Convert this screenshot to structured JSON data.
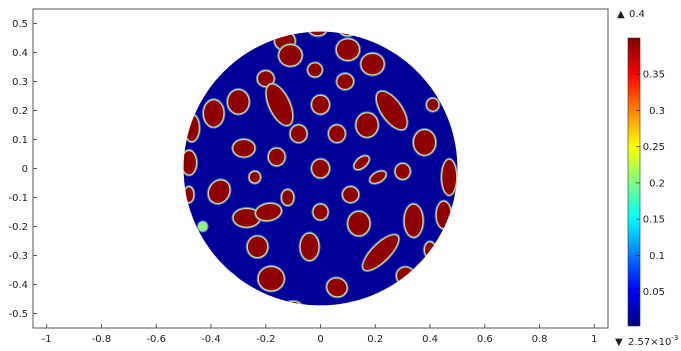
{
  "chart_data": {
    "type": "heatmap",
    "title": "",
    "xlabel": "",
    "ylabel": "",
    "xlim": [
      -1.05,
      1.05
    ],
    "ylim": [
      -0.55,
      0.55
    ],
    "x_ticks": [
      -1,
      -0.8,
      -0.6,
      -0.4,
      -0.2,
      0,
      0.2,
      0.4,
      0.6,
      0.8,
      1
    ],
    "x_tick_labels": [
      "-1",
      "-0.8",
      "-0.6",
      "-0.4",
      "-0.2",
      "0",
      "0.2",
      "0.4",
      "0.6",
      "0.8",
      "1"
    ],
    "y_ticks": [
      0.5,
      0.4,
      0.3,
      0.2,
      0.1,
      0,
      -0.1,
      -0.2,
      -0.3,
      -0.4,
      -0.5
    ],
    "y_tick_labels": [
      "0.5",
      "0.4",
      "0.3",
      "0.2",
      "0.1",
      "0",
      "-0.1",
      "-0.2",
      "-0.3",
      "-0.4",
      "-0.5"
    ],
    "domain": {
      "shape": "circle",
      "center": [
        0,
        0
      ],
      "radius": 0.5
    },
    "background_value": 0.0026,
    "grid": false,
    "colorbar": {
      "ticks": [
        0.35,
        0.3,
        0.25,
        0.2,
        0.15,
        0.1,
        0.05
      ],
      "tick_labels": [
        "0.35",
        "0.3",
        "0.25",
        "0.2",
        "0.15",
        "0.1",
        "0.05"
      ],
      "max_value": 0.4,
      "max_label": "0.4",
      "min_value": 0.00257,
      "min_label_mantissa": "2.57",
      "min_label_exponent": "-3",
      "max_marker": "▲",
      "min_marker": "▼",
      "colors": [
        "#00007f",
        "#0000ff",
        "#007fff",
        "#00ffff",
        "#7fff7f",
        "#ffff00",
        "#ff7f00",
        "#ff0000",
        "#7f0000"
      ]
    },
    "blobs": [
      {
        "x": -0.25,
        "y": 0.46,
        "rx": 0.03,
        "ry": 0.025,
        "angle": 0,
        "value": 0.4
      },
      {
        "x": -0.13,
        "y": 0.44,
        "rx": 0.035,
        "ry": 0.03,
        "angle": 0,
        "value": 0.4
      },
      {
        "x": -0.01,
        "y": 0.48,
        "rx": 0.03,
        "ry": 0.02,
        "angle": 0,
        "value": 0.4
      },
      {
        "x": 0.1,
        "y": 0.48,
        "rx": 0.03,
        "ry": 0.02,
        "angle": 0,
        "value": 0.4
      },
      {
        "x": 0.22,
        "y": 0.46,
        "rx": 0.025,
        "ry": 0.02,
        "angle": 0,
        "value": 0.4
      },
      {
        "x": -0.11,
        "y": 0.39,
        "rx": 0.04,
        "ry": 0.035,
        "angle": 0,
        "value": 0.4
      },
      {
        "x": 0.1,
        "y": 0.41,
        "rx": 0.04,
        "ry": 0.035,
        "angle": 0,
        "value": 0.4
      },
      {
        "x": -0.34,
        "y": 0.4,
        "rx": 0.035,
        "ry": 0.025,
        "angle": 20,
        "value": 0.4
      },
      {
        "x": 0.32,
        "y": 0.4,
        "rx": 0.025,
        "ry": 0.022,
        "angle": 0,
        "value": 0.4
      },
      {
        "x": -0.02,
        "y": 0.34,
        "rx": 0.024,
        "ry": 0.022,
        "angle": 0,
        "value": 0.4
      },
      {
        "x": -0.2,
        "y": 0.31,
        "rx": 0.028,
        "ry": 0.025,
        "angle": 0,
        "value": 0.4
      },
      {
        "x": 0.19,
        "y": 0.36,
        "rx": 0.04,
        "ry": 0.035,
        "angle": 0,
        "value": 0.4
      },
      {
        "x": 0.09,
        "y": 0.3,
        "rx": 0.028,
        "ry": 0.025,
        "angle": 0,
        "value": 0.4
      },
      {
        "x": -0.3,
        "y": 0.23,
        "rx": 0.037,
        "ry": 0.04,
        "angle": 0,
        "value": 0.4
      },
      {
        "x": -0.15,
        "y": 0.22,
        "rx": 0.035,
        "ry": 0.075,
        "angle": -25,
        "value": 0.4
      },
      {
        "x": 0.0,
        "y": 0.22,
        "rx": 0.03,
        "ry": 0.03,
        "angle": 0,
        "value": 0.4
      },
      {
        "x": 0.26,
        "y": 0.2,
        "rx": 0.035,
        "ry": 0.075,
        "angle": -35,
        "value": 0.4
      },
      {
        "x": 0.41,
        "y": 0.22,
        "rx": 0.02,
        "ry": 0.02,
        "angle": 0,
        "value": 0.4
      },
      {
        "x": -0.39,
        "y": 0.19,
        "rx": 0.035,
        "ry": 0.045,
        "angle": 0,
        "value": 0.4
      },
      {
        "x": -0.47,
        "y": 0.14,
        "rx": 0.025,
        "ry": 0.045,
        "angle": 0,
        "value": 0.4
      },
      {
        "x": 0.17,
        "y": 0.15,
        "rx": 0.038,
        "ry": 0.04,
        "angle": 0,
        "value": 0.4
      },
      {
        "x": -0.08,
        "y": 0.12,
        "rx": 0.028,
        "ry": 0.028,
        "angle": 0,
        "value": 0.4
      },
      {
        "x": 0.06,
        "y": 0.12,
        "rx": 0.028,
        "ry": 0.028,
        "angle": 0,
        "value": 0.4
      },
      {
        "x": 0.38,
        "y": 0.09,
        "rx": 0.038,
        "ry": 0.042,
        "angle": 0,
        "value": 0.4
      },
      {
        "x": -0.28,
        "y": 0.07,
        "rx": 0.038,
        "ry": 0.028,
        "angle": 0,
        "value": 0.4
      },
      {
        "x": -0.48,
        "y": 0.02,
        "rx": 0.025,
        "ry": 0.04,
        "angle": 0,
        "value": 0.4
      },
      {
        "x": -0.16,
        "y": 0.04,
        "rx": 0.028,
        "ry": 0.028,
        "angle": 0,
        "value": 0.4
      },
      {
        "x": 0.0,
        "y": 0.0,
        "rx": 0.03,
        "ry": 0.03,
        "angle": 0,
        "value": 0.4
      },
      {
        "x": 0.15,
        "y": 0.02,
        "rx": 0.03,
        "ry": 0.015,
        "angle": -40,
        "value": 0.4
      },
      {
        "x": 0.21,
        "y": -0.03,
        "rx": 0.03,
        "ry": 0.015,
        "angle": -30,
        "value": 0.4
      },
      {
        "x": 0.3,
        "y": -0.01,
        "rx": 0.025,
        "ry": 0.025,
        "angle": 0,
        "value": 0.4
      },
      {
        "x": -0.24,
        "y": -0.03,
        "rx": 0.018,
        "ry": 0.018,
        "angle": 0,
        "value": 0.4
      },
      {
        "x": 0.47,
        "y": -0.03,
        "rx": 0.025,
        "ry": 0.06,
        "angle": 0,
        "value": 0.4
      },
      {
        "x": -0.37,
        "y": -0.08,
        "rx": 0.035,
        "ry": 0.04,
        "angle": 30,
        "value": 0.4
      },
      {
        "x": 0.11,
        "y": -0.09,
        "rx": 0.027,
        "ry": 0.025,
        "angle": 0,
        "value": 0.4
      },
      {
        "x": -0.12,
        "y": -0.1,
        "rx": 0.02,
        "ry": 0.025,
        "angle": 0,
        "value": 0.4
      },
      {
        "x": -0.48,
        "y": -0.09,
        "rx": 0.015,
        "ry": 0.025,
        "angle": 0,
        "value": 0.4
      },
      {
        "x": -0.27,
        "y": -0.17,
        "rx": 0.047,
        "ry": 0.03,
        "angle": 0,
        "value": 0.4
      },
      {
        "x": -0.19,
        "y": -0.15,
        "rx": 0.045,
        "ry": 0.027,
        "angle": -10,
        "value": 0.4
      },
      {
        "x": 0.0,
        "y": -0.15,
        "rx": 0.025,
        "ry": 0.025,
        "angle": 0,
        "value": 0.4
      },
      {
        "x": 0.14,
        "y": -0.19,
        "rx": 0.038,
        "ry": 0.04,
        "angle": 0,
        "value": 0.4
      },
      {
        "x": 0.34,
        "y": -0.18,
        "rx": 0.032,
        "ry": 0.055,
        "angle": 0,
        "value": 0.4
      },
      {
        "x": 0.45,
        "y": -0.16,
        "rx": 0.025,
        "ry": 0.045,
        "angle": 0,
        "value": 0.4
      },
      {
        "x": -0.43,
        "y": -0.2,
        "rx": 0.013,
        "ry": 0.013,
        "angle": 0,
        "value": 0.2
      },
      {
        "x": -0.23,
        "y": -0.27,
        "rx": 0.035,
        "ry": 0.035,
        "angle": 0,
        "value": 0.4
      },
      {
        "x": -0.04,
        "y": -0.27,
        "rx": 0.032,
        "ry": 0.045,
        "angle": 0,
        "value": 0.4
      },
      {
        "x": 0.22,
        "y": -0.29,
        "rx": 0.03,
        "ry": 0.08,
        "angle": 45,
        "value": 0.4
      },
      {
        "x": 0.4,
        "y": -0.28,
        "rx": 0.018,
        "ry": 0.025,
        "angle": 0,
        "value": 0.4
      },
      {
        "x": -0.18,
        "y": -0.38,
        "rx": 0.045,
        "ry": 0.04,
        "angle": 0,
        "value": 0.4
      },
      {
        "x": -0.33,
        "y": -0.39,
        "rx": 0.02,
        "ry": 0.025,
        "angle": 0,
        "value": 0.4
      },
      {
        "x": 0.06,
        "y": -0.41,
        "rx": 0.035,
        "ry": 0.03,
        "angle": 20,
        "value": 0.4
      },
      {
        "x": 0.31,
        "y": -0.37,
        "rx": 0.03,
        "ry": 0.028,
        "angle": 0,
        "value": 0.4
      },
      {
        "x": -0.1,
        "y": -0.49,
        "rx": 0.035,
        "ry": 0.03,
        "angle": 0,
        "value": 0.4
      },
      {
        "x": 0.0,
        "y": -0.53,
        "rx": 0.035,
        "ry": 0.025,
        "angle": 0,
        "value": 0.4
      },
      {
        "x": 0.12,
        "y": -0.49,
        "rx": 0.03,
        "ry": 0.025,
        "angle": 0,
        "value": 0.4
      },
      {
        "x": 0.24,
        "y": -0.45,
        "rx": 0.03,
        "ry": 0.025,
        "angle": 0,
        "value": 0.4
      }
    ]
  }
}
